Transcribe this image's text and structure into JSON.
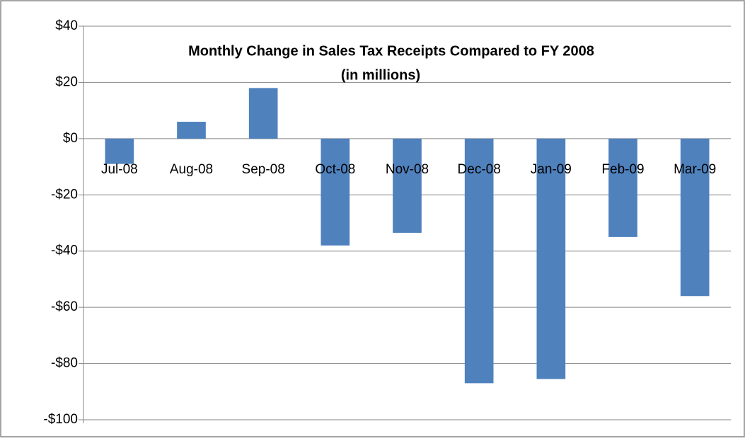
{
  "chart_data": {
    "type": "bar",
    "title": "Monthly Change in Sales Tax Receipts Compared to FY 2008",
    "subtitle": "(in millions)",
    "categories": [
      "Jul-08",
      "Aug-08",
      "Sep-08",
      "Oct-08",
      "Nov-08",
      "Dec-08",
      "Jan-09",
      "Feb-09",
      "Mar-09"
    ],
    "values": [
      -9,
      6,
      18,
      -38,
      -33.5,
      -87,
      -85.5,
      -35,
      -56
    ],
    "color": "#4f81bd",
    "ylim": [
      -100,
      40
    ],
    "yticks": [
      {
        "value": -100,
        "label": "-$100"
      },
      {
        "value": -80,
        "label": "-$80"
      },
      {
        "value": -60,
        "label": "-$60"
      },
      {
        "value": -40,
        "label": "-$40"
      },
      {
        "value": -20,
        "label": "-$20"
      },
      {
        "value": 0,
        "label": "$0"
      },
      {
        "value": 20,
        "label": "$20"
      },
      {
        "value": 40,
        "label": "$40"
      }
    ],
    "grid": true
  }
}
